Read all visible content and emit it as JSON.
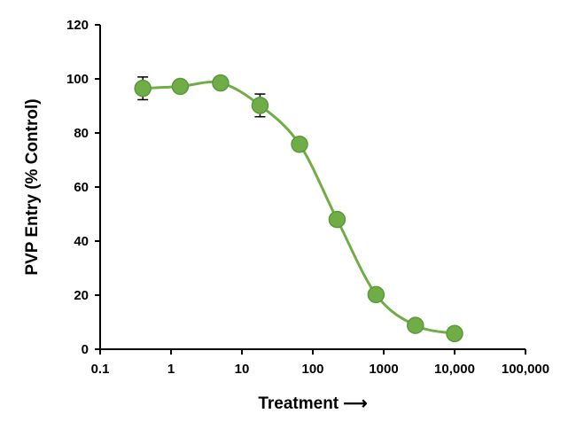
{
  "chart_data": {
    "type": "line",
    "title": "",
    "xlabel": "Treatment ⟶",
    "ylabel": "PVP Entry (% Control)",
    "x_scale": "log",
    "xlim": [
      0.1,
      100000
    ],
    "ylim": [
      0,
      120
    ],
    "x_ticks": [
      0.1,
      1,
      10,
      100,
      1000,
      10000,
      100000
    ],
    "x_tick_labels": [
      "0.1",
      "1",
      "10",
      "100",
      "1000",
      "10,000",
      "100,000"
    ],
    "y_ticks": [
      0,
      20,
      40,
      60,
      80,
      100,
      120
    ],
    "y_tick_labels": [
      "0",
      "20",
      "40",
      "60",
      "80",
      "100",
      "120"
    ],
    "grid": false,
    "legend": "none",
    "series": [
      {
        "color": "#70ad47",
        "marker_fill": "#70ad47",
        "marker_edge": "#5a9a3a",
        "x": [
          0.4,
          1.35,
          5.0,
          18,
          65,
          220,
          780,
          2800,
          10000
        ],
        "y": [
          96.5,
          97.2,
          98.5,
          90.2,
          75.8,
          48.0,
          20.2,
          8.8,
          5.8
        ],
        "error": [
          4.2,
          0,
          0,
          4.2,
          0,
          0,
          0,
          0,
          0
        ]
      }
    ]
  }
}
